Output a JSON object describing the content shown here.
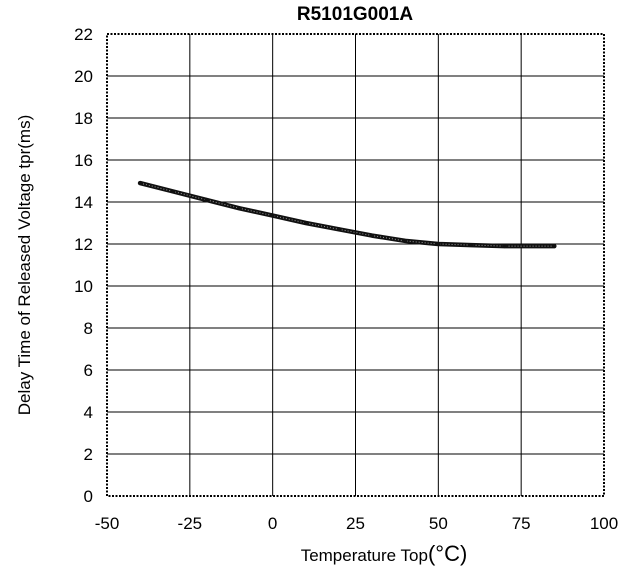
{
  "chart_data": {
    "type": "line",
    "title": "R5101G001A",
    "xlabel": "Temperature Top",
    "xlabel_unit": "(°C)",
    "ylabel": "Delay Time of Released Voltage tpr(ms)",
    "xlim": [
      -50,
      100
    ],
    "ylim": [
      0,
      22
    ],
    "x_ticks": [
      -50,
      -25,
      0,
      25,
      50,
      75,
      100
    ],
    "y_ticks": [
      0,
      2,
      4,
      6,
      8,
      10,
      12,
      14,
      16,
      18,
      20,
      22
    ],
    "grid": true,
    "legend": "none",
    "series": [
      {
        "x": [
          -40,
          -30,
          -20,
          -10,
          0,
          10,
          20,
          30,
          40,
          50,
          60,
          70,
          85
        ],
        "y": [
          14.9,
          14.5,
          14.1,
          13.7,
          13.35,
          13.0,
          12.7,
          12.4,
          12.15,
          12.0,
          11.95,
          11.9,
          11.9
        ]
      }
    ],
    "colors": {
      "line": "#111111",
      "grid": "#000000",
      "frame": "#000000"
    }
  }
}
